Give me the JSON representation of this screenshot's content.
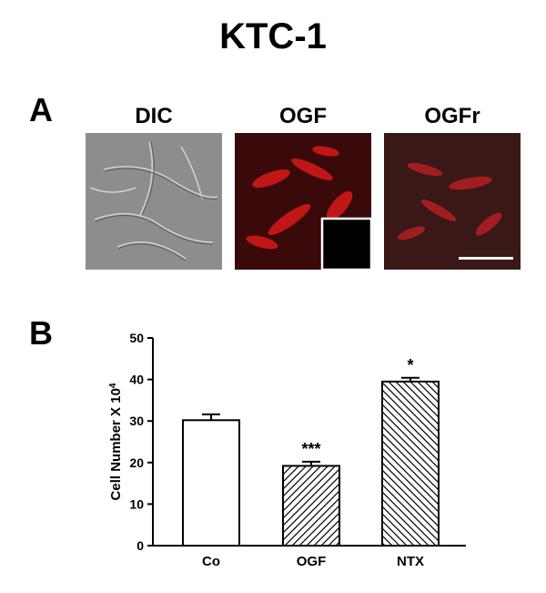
{
  "figure": {
    "title": "KTC-1",
    "panel_a": {
      "letter": "A",
      "images": [
        {
          "label": "DIC",
          "kind": "grayscale-dic"
        },
        {
          "label": "OGF",
          "kind": "red-fluorescence",
          "inset": "black-control"
        },
        {
          "label": "OGFr",
          "kind": "red-fluorescence-dim",
          "scale_bar": true
        }
      ]
    },
    "panel_b": {
      "letter": "B"
    }
  },
  "colors": {
    "bg": "#ffffff",
    "dic_bg": "#8d8d8d",
    "fluor_bg": "#3a0a0a",
    "fluor_cell": "#d01818",
    "fluor_bg_dim": "#3a1818",
    "fluor_cell_dim": "#b52020"
  },
  "chart_data": {
    "type": "bar",
    "categories": [
      "Co",
      "OGF",
      "NTX"
    ],
    "values": [
      30.2,
      19.2,
      39.5
    ],
    "errors": [
      1.4,
      1.0,
      0.9
    ],
    "annotations": [
      "",
      "***",
      "*"
    ],
    "fills": [
      "none",
      "diagonal-up",
      "diagonal-down"
    ],
    "ylabel": "Cell Number X 10",
    "ylabel_sup": "4",
    "ylim": [
      0,
      50
    ],
    "yticks": [
      0,
      10,
      20,
      30,
      40,
      50
    ],
    "grid": false,
    "legend": "none"
  }
}
